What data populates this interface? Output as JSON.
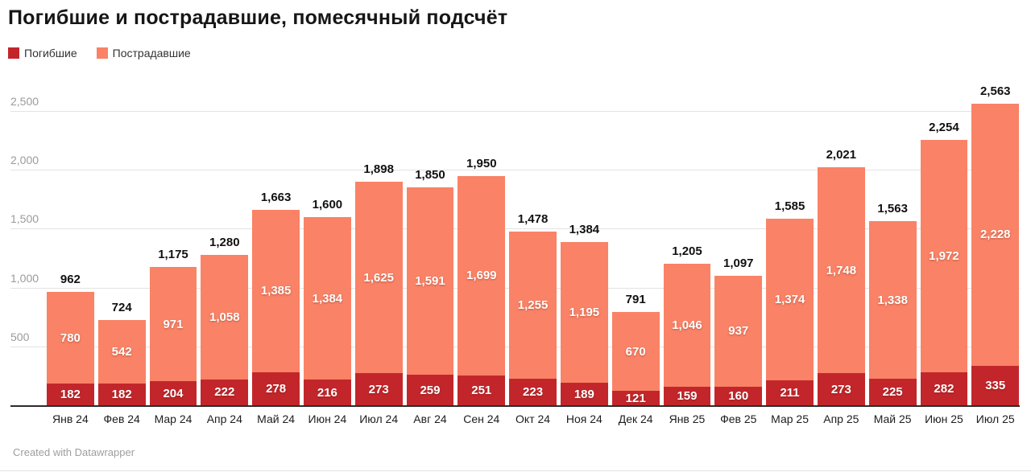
{
  "title": "Погибшие и пострадавшие, помесячный подсчёт",
  "legend": {
    "items": [
      {
        "label": "Погибшие",
        "color": "#c2262b"
      },
      {
        "label": "Пострадавшие",
        "color": "#fa8266"
      }
    ]
  },
  "footer": {
    "credit": "Created with Datawrapper"
  },
  "chart_data": {
    "type": "bar",
    "stacked": true,
    "title": "Погибшие и пострадавшие, помесячный подсчёт",
    "categories": [
      "Янв 24",
      "Фев 24",
      "Мар 24",
      "Апр 24",
      "Май 24",
      "Июн 24",
      "Июл 24",
      "Авг 24",
      "Сен 24",
      "Окт 24",
      "Ноя 24",
      "Дек 24",
      "Янв 25",
      "Фев 25",
      "Мар 25",
      "Апр 25",
      "Май 25",
      "Июн 25",
      "Июл 25"
    ],
    "series": [
      {
        "name": "Погибшие",
        "color": "#c2262b",
        "values": [
          182,
          182,
          204,
          222,
          278,
          216,
          273,
          259,
          251,
          223,
          189,
          121,
          159,
          160,
          211,
          273,
          225,
          282,
          335
        ]
      },
      {
        "name": "Пострадавшие",
        "color": "#fa8266",
        "values": [
          780,
          542,
          971,
          1058,
          1385,
          1384,
          1625,
          1591,
          1699,
          1255,
          1195,
          670,
          1046,
          937,
          1374,
          1748,
          1338,
          1972,
          2228
        ]
      }
    ],
    "totals": [
      962,
      724,
      1175,
      1280,
      1663,
      1600,
      1898,
      1850,
      1950,
      1478,
      1384,
      791,
      1205,
      1097,
      1585,
      2021,
      1563,
      2254,
      2563
    ],
    "xlabel": "",
    "ylabel": "",
    "y_ticks": [
      500,
      1000,
      1500,
      2000,
      2500
    ],
    "ylim": [
      0,
      2600
    ],
    "grid": "horizontal",
    "legend_position": "top-left",
    "value_labels": "inside-and-total"
  }
}
